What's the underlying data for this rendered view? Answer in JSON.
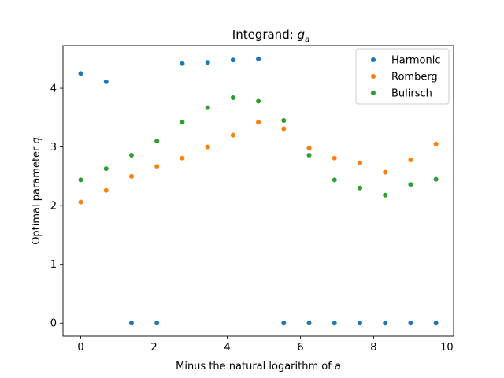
{
  "chart_data": {
    "type": "scatter",
    "title_prefix": "Integrand: ",
    "title_math_base": "g",
    "title_math_sub": "a",
    "xlabel_prefix": "Minus the natural logarithm of ",
    "xlabel_math": "a",
    "ylabel_prefix": "Optimal parameter ",
    "ylabel_math": "q",
    "xlim": [
      -0.485,
      10.185
    ],
    "ylim": [
      -0.225,
      4.725
    ],
    "xticks": [
      0,
      2,
      4,
      6,
      8,
      10
    ],
    "yticks": [
      0,
      1,
      2,
      3,
      4
    ],
    "legend_position": "upper right",
    "grid": false,
    "x": [
      0,
      0.693,
      1.386,
      2.079,
      2.773,
      3.466,
      4.159,
      4.852,
      5.545,
      6.238,
      6.931,
      7.625,
      8.318,
      9.011,
      9.704
    ],
    "series": [
      {
        "name": "Harmonic",
        "color": "#1f77b4",
        "values": [
          4.25,
          4.11,
          0,
          0,
          4.42,
          4.44,
          4.48,
          4.5,
          0,
          0,
          0,
          0,
          0,
          0,
          0
        ]
      },
      {
        "name": "Romberg",
        "color": "#ff7f0e",
        "values": [
          2.06,
          2.26,
          2.5,
          2.67,
          2.81,
          3.0,
          3.2,
          3.42,
          3.31,
          2.98,
          2.81,
          2.73,
          2.57,
          2.78,
          3.05
        ]
      },
      {
        "name": "Bulirsch",
        "color": "#2ca02c",
        "values": [
          2.44,
          2.63,
          2.86,
          3.1,
          3.42,
          3.67,
          3.84,
          3.78,
          3.45,
          2.86,
          2.44,
          2.3,
          2.18,
          2.36,
          2.45
        ]
      }
    ]
  }
}
